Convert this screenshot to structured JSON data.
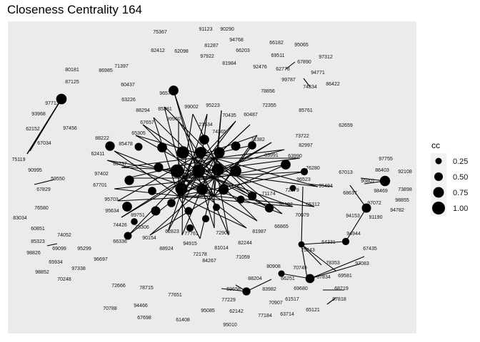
{
  "chart_data": {
    "type": "scatter",
    "title": "Closeness Centrality 164",
    "xlabel": "",
    "ylabel": "",
    "grid": false,
    "legend": {
      "title": "cc",
      "placement": "right",
      "entries": [
        {
          "label": "0.25",
          "value": 0.25
        },
        {
          "label": "0.50",
          "value": 0.5
        },
        {
          "label": "0.75",
          "value": 0.75
        },
        {
          "label": "1.00",
          "value": 1.0
        }
      ]
    },
    "node_labels": [
      "75367",
      "91123",
      "90290",
      "94768",
      "81287",
      "66203",
      "66182",
      "95065",
      "82412",
      "62098",
      "97922",
      "69511",
      "97312",
      "81984",
      "92476",
      "62778",
      "67890",
      "94771",
      "80181",
      "86985",
      "71397",
      "87125",
      "60437",
      "99787",
      "74334",
      "86422",
      "78856",
      "96570",
      "63226",
      "88294",
      "85381",
      "99002",
      "95223",
      "97713",
      "70435",
      "60487",
      "72355",
      "85761",
      "62659",
      "93968",
      "67657",
      "99960",
      "21534",
      "97456",
      "65305",
      "74365",
      "71382",
      "73722",
      "62152",
      "67034",
      "88222",
      "85478",
      "82997",
      "62411",
      "63990",
      "83991",
      "76280",
      "75119",
      "65737",
      "97755",
      "97402",
      "67013",
      "86403",
      "92108",
      "90995",
      "96523",
      "95801",
      "73898",
      "59550",
      "98469",
      "67701",
      "95494",
      "98855",
      "67829",
      "68637",
      "95703",
      "71174",
      "72579",
      "98182",
      "65312",
      "97072",
      "94782",
      "76580",
      "95634",
      "74426",
      "94153",
      "91190",
      "83034",
      "70079",
      "89751",
      "78306",
      "60851",
      "62823",
      "77761",
      "81987",
      "66865",
      "74052",
      "66336",
      "90154",
      "94944",
      "85323",
      "88924",
      "94915",
      "72903",
      "64331",
      "69099",
      "95299",
      "81014",
      "82244",
      "75243",
      "98826",
      "72178",
      "67435",
      "96697",
      "71059",
      "65934",
      "97338",
      "97083",
      "98852",
      "69581",
      "70248",
      "84267",
      "80908",
      "70749",
      "78353",
      "72666",
      "88204",
      "66251",
      "67834",
      "68719",
      "78715",
      "59658",
      "83982",
      "69680",
      "77651",
      "77229",
      "97818",
      "70788",
      "94466",
      "70907",
      "61517",
      "62142",
      "65121",
      "63714",
      "95085",
      "77184",
      "67698",
      "61408",
      "95010"
    ]
  }
}
